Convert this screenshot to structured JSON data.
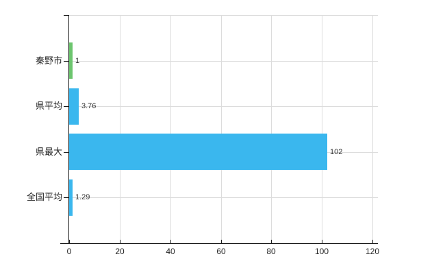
{
  "chart_data": {
    "type": "bar",
    "orientation": "horizontal",
    "title": "",
    "categories": [
      "秦野市",
      "県平均",
      "県最大",
      "全国平均"
    ],
    "values": [
      1,
      3.76,
      102,
      1.29
    ],
    "value_labels": [
      "1",
      "3.76",
      "102",
      "1.29"
    ],
    "bar_colors": [
      "#6cc56e",
      "#3ab7ee",
      "#3ab7ee",
      "#3ab7ee"
    ],
    "x_ticks": [
      "0",
      "20",
      "40",
      "60",
      "80",
      "100",
      "120"
    ],
    "x_tick_values": [
      0,
      20,
      40,
      60,
      80,
      100,
      120
    ],
    "xlim": [
      0,
      120
    ],
    "grid": true,
    "legend_position": "none",
    "colors": {
      "background": "#ffffff",
      "grid": "#dcdcdc",
      "axis": "#1a1a1a",
      "text": "#222222",
      "value_text": "#333333"
    }
  }
}
